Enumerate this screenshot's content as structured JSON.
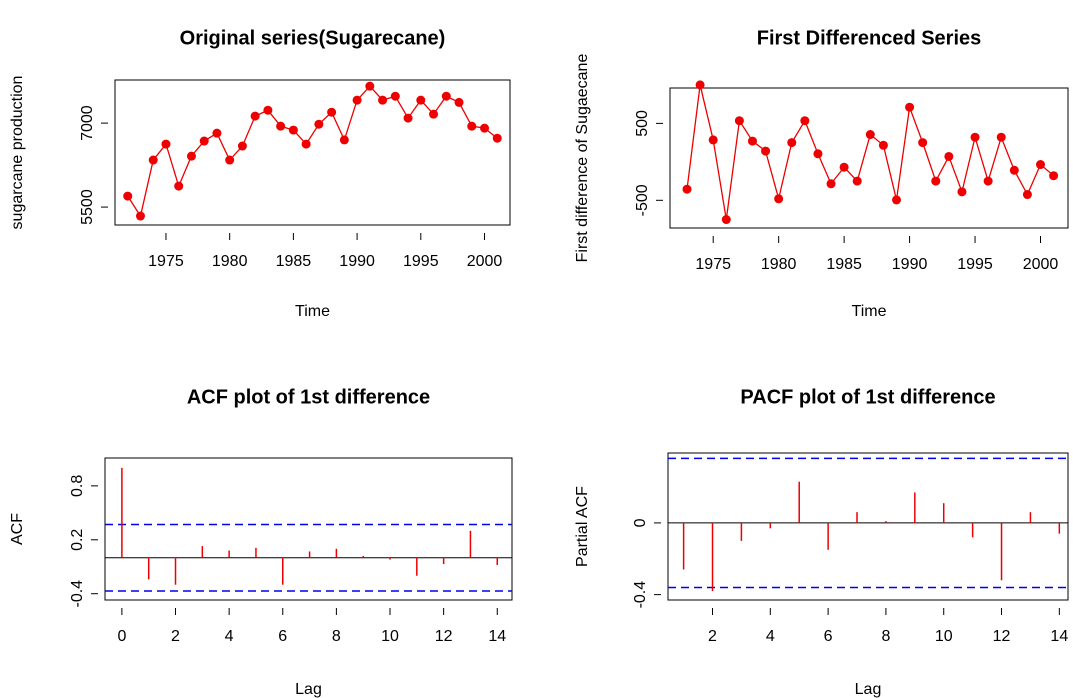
{
  "chart_data": [
    {
      "type": "line",
      "title": "Original series(Sugarecane)",
      "xlabel": "Time",
      "ylabel": "sugarcane production",
      "x": [
        1972,
        1973,
        1974,
        1975,
        1976,
        1977,
        1978,
        1979,
        1980,
        1981,
        1982,
        1983,
        1984,
        1985,
        1986,
        1987,
        1988,
        1989,
        1990,
        1991,
        1992,
        1993,
        1994,
        1995,
        1996,
        1997,
        1998,
        1999,
        2000,
        2001
      ],
      "values": [
        5696,
        5340,
        6340,
        6625,
        5875,
        6410,
        6680,
        6820,
        6340,
        6590,
        7125,
        7230,
        6945,
        6875,
        6625,
        6980,
        7195,
        6700,
        7410,
        7660,
        7410,
        7480,
        7090,
        7410,
        7160,
        7480,
        7370,
        6945,
        6910,
        6730
      ],
      "color": "#ee0000",
      "xlim": [
        1971,
        2002
      ],
      "ylim": [
        5180,
        7770
      ],
      "xticks": [
        1975,
        1980,
        1985,
        1990,
        1995,
        2000
      ],
      "yticks": [
        5500,
        7000
      ]
    },
    {
      "type": "line",
      "title": "First Differenced Series",
      "xlabel": "Time",
      "ylabel": "First difference of Sugaecane",
      "x": [
        1973,
        1974,
        1975,
        1976,
        1977,
        1978,
        1979,
        1980,
        1981,
        1982,
        1983,
        1984,
        1985,
        1986,
        1987,
        1988,
        1989,
        1990,
        1991,
        1992,
        1993,
        1994,
        1995,
        1996,
        1997,
        1998,
        1999,
        2000,
        2001
      ],
      "values": [
        -356,
        1000,
        285,
        -750,
        535,
        270,
        140,
        -480,
        250,
        535,
        105,
        -285,
        -70,
        -250,
        355,
        215,
        -495,
        710,
        250,
        -250,
        70,
        -390,
        320,
        -250,
        320,
        -110,
        -425,
        -35,
        -180
      ],
      "color": "#ee0000",
      "xlim": [
        1971.7,
        2002.1
      ],
      "ylim": [
        -860,
        960
      ],
      "xticks": [
        1975,
        1980,
        1985,
        1990,
        1995,
        2000
      ],
      "yticks": [
        -500,
        500
      ]
    },
    {
      "type": "stem",
      "title": "ACF plot of 1st difference",
      "xlabel": "Lag",
      "ylabel": "ACF",
      "x": [
        0,
        1,
        2,
        3,
        4,
        5,
        6,
        7,
        8,
        9,
        10,
        11,
        12,
        13,
        14
      ],
      "values": [
        1.0,
        -0.24,
        -0.3,
        0.13,
        0.08,
        0.11,
        -0.3,
        0.07,
        0.1,
        0.02,
        -0.02,
        -0.2,
        -0.07,
        0.3,
        -0.08
      ],
      "color": "#ee0000",
      "ci": [
        -0.37,
        0.37
      ],
      "ci_color": "#0000ee",
      "xlim": [
        -0.63,
        14.55
      ],
      "ylim": [
        -0.47,
        1.11
      ],
      "xticks": [
        0,
        2,
        4,
        6,
        8,
        10,
        12,
        14
      ],
      "yticks": [
        -0.4,
        0.2,
        0.8
      ]
    },
    {
      "type": "stem",
      "title": "PACF plot of 1st difference",
      "xlabel": "Lag",
      "ylabel": "Partial ACF",
      "x": [
        1,
        2,
        3,
        4,
        5,
        6,
        7,
        8,
        9,
        10,
        11,
        12,
        13,
        14
      ],
      "values": [
        -0.26,
        -0.38,
        -0.1,
        -0.03,
        0.23,
        -0.15,
        0.06,
        0.01,
        0.17,
        0.11,
        -0.08,
        -0.32,
        0.06,
        -0.06
      ],
      "color": "#ee0000",
      "ci": [
        -0.36,
        0.36
      ],
      "ci_color": "#0000ee",
      "xlim": [
        0.46,
        14.3
      ],
      "ylim": [
        -0.43,
        0.39
      ],
      "xticks": [
        2,
        4,
        6,
        8,
        10,
        12,
        14
      ],
      "yticks": [
        -0.4,
        0.0
      ]
    }
  ]
}
